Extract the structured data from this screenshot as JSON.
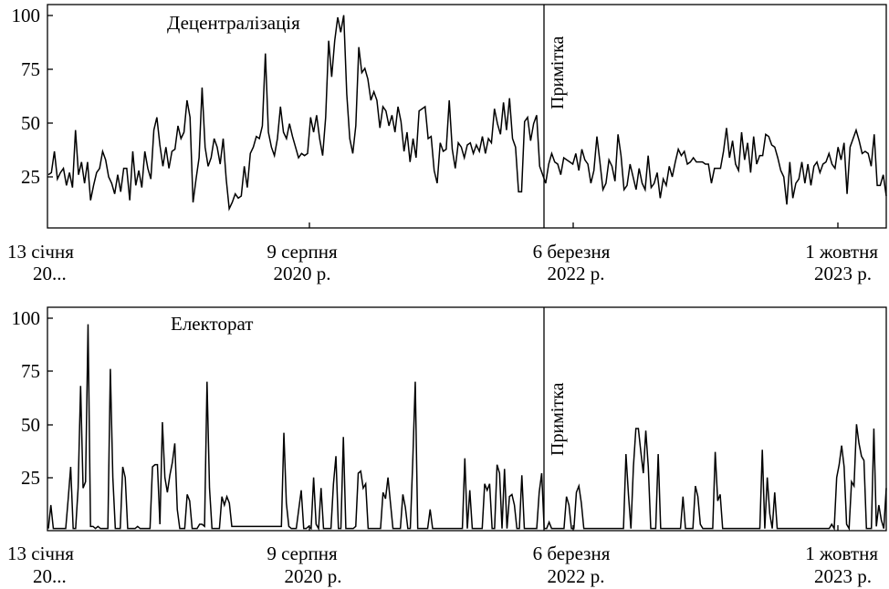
{
  "chart_data": [
    {
      "type": "line",
      "title": "Децентралізація",
      "xlabel": "",
      "ylabel": "",
      "ylim": [
        0,
        105
      ],
      "yticks": [
        "100",
        "75",
        "50",
        "25"
      ],
      "xtick_labels": [
        {
          "line1": "13 січня",
          "line2": "20..."
        },
        {
          "line1": "9 серпня",
          "line2": "2020 р."
        },
        {
          "line1": "6 березня",
          "line2": "2022 р."
        },
        {
          "line1": "1 жовтня",
          "line2": "2023 р."
        }
      ],
      "annotation": {
        "text": "Примітка",
        "x_fraction": 0.592
      },
      "grid": false,
      "line_color": "#000000",
      "series": [
        {
          "values": [
            25,
            26,
            36,
            23,
            26,
            28,
            20,
            26,
            19,
            46,
            25,
            31,
            21,
            31,
            13,
            20,
            26,
            28,
            36,
            32,
            24,
            21,
            16,
            25,
            17,
            28,
            28,
            13,
            36,
            20,
            27,
            19,
            36,
            28,
            23,
            46,
            52,
            39,
            29,
            38,
            28,
            36,
            37,
            48,
            42,
            45,
            60,
            52,
            12,
            23,
            33,
            66,
            38,
            29,
            33,
            42,
            38,
            30,
            42,
            23,
            9,
            12,
            16,
            14,
            15,
            29,
            19,
            35,
            38,
            43,
            42,
            48,
            82,
            45,
            38,
            34,
            42,
            57,
            45,
            42,
            49,
            43,
            38,
            33,
            35,
            34,
            35,
            52,
            45,
            53,
            42,
            34,
            52,
            88,
            71,
            88,
            99,
            92,
            100,
            63,
            42,
            35,
            48,
            85,
            73,
            75,
            70,
            60,
            64,
            60,
            47,
            57,
            55,
            48,
            53,
            45,
            57,
            50,
            36,
            45,
            31,
            42,
            33,
            55,
            56,
            57,
            42,
            43,
            27,
            21,
            40,
            36,
            37,
            60,
            37,
            28,
            40,
            38,
            33,
            39,
            40,
            35,
            39,
            36,
            43,
            35,
            42,
            40,
            56,
            49,
            44,
            59,
            46,
            61,
            42,
            38,
            17,
            17,
            50,
            52,
            41,
            49,
            53,
            29,
            25,
            21,
            30,
            35,
            31,
            30,
            25,
            33,
            32,
            31,
            30,
            35,
            27,
            37,
            32,
            30,
            21,
            27,
            43,
            31,
            18,
            21,
            32,
            29,
            22,
            44,
            34,
            18,
            20,
            30,
            24,
            18,
            28,
            21,
            18,
            34,
            19,
            21,
            26,
            14,
            23,
            20,
            29,
            24,
            31,
            37,
            34,
            36,
            30,
            31,
            33,
            31,
            31,
            31,
            30,
            30,
            21,
            28,
            28,
            28,
            36,
            47,
            33,
            41,
            30,
            27,
            45,
            32,
            40,
            26,
            43,
            30,
            34,
            34,
            44,
            43,
            39,
            38,
            33,
            27,
            24,
            11,
            31,
            14,
            21,
            23,
            31,
            21,
            30,
            20,
            29,
            31,
            26,
            30,
            31,
            35,
            30,
            28,
            38,
            32,
            40,
            16,
            38,
            42,
            46,
            41,
            35,
            36,
            35,
            29,
            44,
            20,
            20,
            25,
            15
          ]
        }
      ]
    },
    {
      "type": "line",
      "title": "Електорат",
      "xlabel": "",
      "ylabel": "",
      "ylim": [
        0,
        105
      ],
      "yticks": [
        "100",
        "75",
        "50",
        "25"
      ],
      "xtick_labels": [
        {
          "line1": "13 січня",
          "line2": "20..."
        },
        {
          "line1": "9 серпня",
          "line2": "2020 р."
        },
        {
          "line1": "6 березня",
          "line2": "2022 р."
        },
        {
          "line1": "1 жовтня",
          "line2": "2023 р."
        }
      ],
      "annotation": {
        "text": "Примітка",
        "x_fraction": 0.592
      },
      "grid": false,
      "line_color": "#000000",
      "series": [
        {
          "values": [
            1,
            12,
            1,
            1,
            1,
            1,
            1,
            1,
            15,
            30,
            1,
            1,
            20,
            68,
            20,
            23,
            97,
            2,
            2,
            1,
            2,
            1,
            1,
            1,
            1,
            76,
            25,
            1,
            1,
            1,
            30,
            25,
            1,
            1,
            1,
            1,
            2,
            1,
            1,
            1,
            1,
            1,
            30,
            31,
            31,
            3,
            51,
            25,
            18,
            26,
            32,
            41,
            10,
            1,
            1,
            1,
            17,
            14,
            1,
            1,
            1,
            3,
            3,
            2,
            70,
            20,
            1,
            1,
            1,
            1,
            16,
            12,
            16,
            13,
            2,
            2,
            2,
            2,
            2,
            2,
            2,
            2,
            2,
            2,
            2,
            2,
            2,
            2,
            2,
            2,
            2,
            2,
            2,
            2,
            2,
            46,
            13,
            2,
            1,
            1,
            1,
            10,
            19,
            1,
            1,
            2,
            1,
            25,
            3,
            1,
            20,
            1,
            1,
            1,
            1,
            22,
            35,
            1,
            1,
            44,
            1,
            1,
            1,
            1,
            2,
            27,
            28,
            20,
            22,
            1,
            1,
            1,
            1,
            1,
            1,
            18,
            15,
            25,
            13,
            1,
            1,
            1,
            1,
            17,
            11,
            1,
            1,
            33,
            70,
            1,
            1,
            1,
            1,
            1,
            10,
            1,
            1,
            1,
            1,
            1,
            1,
            1,
            1,
            1,
            1,
            1,
            1,
            1,
            34,
            1,
            19,
            1,
            1,
            1,
            1,
            1,
            22,
            19,
            22,
            1,
            1,
            31,
            27,
            1,
            29,
            1,
            16,
            17,
            12,
            1,
            1,
            26,
            1,
            1,
            1,
            1,
            1,
            1,
            18,
            27,
            1,
            1,
            4,
            1,
            1,
            1,
            1,
            1,
            1,
            16,
            12,
            1,
            1,
            18,
            21,
            13,
            1,
            1,
            1,
            1,
            1,
            1,
            1,
            1,
            1,
            1,
            1,
            1,
            1,
            1,
            1,
            1,
            1,
            36,
            17,
            1,
            30,
            48,
            48,
            37,
            27,
            47,
            30,
            1,
            1,
            1,
            36,
            1,
            1,
            1,
            1,
            1,
            1,
            1,
            1,
            1,
            16,
            1,
            1,
            1,
            1,
            21,
            16,
            3,
            1,
            1,
            1,
            1,
            1,
            37,
            14,
            17,
            1,
            1,
            1,
            1,
            1,
            1,
            1,
            1,
            1,
            1,
            1,
            1,
            1,
            1,
            1,
            1,
            38,
            1,
            25,
            8,
            1,
            18,
            1,
            1,
            1,
            1,
            1,
            1,
            1,
            1,
            1,
            1,
            1,
            1,
            1,
            1,
            1,
            1,
            1,
            1,
            1,
            1,
            1,
            1,
            3,
            1,
            25,
            31,
            40,
            30,
            3,
            1,
            23,
            21,
            50,
            41,
            35,
            33,
            1,
            1,
            1,
            48,
            2,
            12,
            5,
            1,
            20
          ]
        }
      ]
    }
  ]
}
